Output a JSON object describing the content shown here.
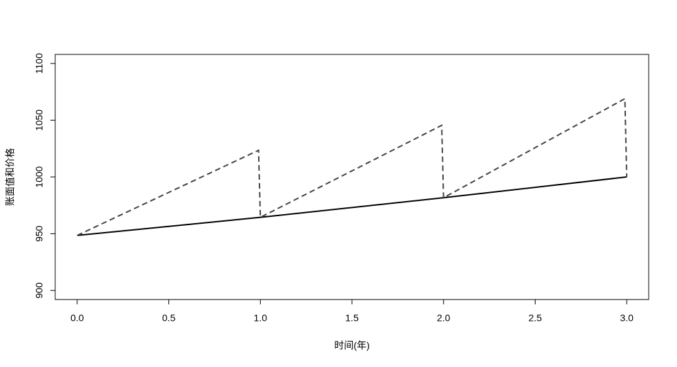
{
  "chart_data": {
    "type": "line",
    "xlabel": "时间(年)",
    "ylabel": "账面值和价格",
    "xlim": [
      -0.12,
      3.12
    ],
    "ylim": [
      892,
      1108
    ],
    "xticks": [
      {
        "value": 0,
        "label": "0.0"
      },
      0.5,
      {
        "value": 1,
        "label": "1.0"
      },
      1.5,
      {
        "value": 2,
        "label": "2.0"
      },
      2.5,
      {
        "value": 3,
        "label": "3.0"
      }
    ],
    "yticks": [
      900,
      950,
      1000,
      1050,
      1100
    ],
    "series": [
      {
        "color": "#000000",
        "linestyle": "solid",
        "x": [
          0,
          1,
          2,
          3
        ],
        "values": [
          948.5,
          964.4,
          981.7,
          1000
        ]
      },
      {
        "color": "#444444",
        "linestyle": "dashed",
        "x": [
          0,
          0.99,
          1,
          1.99,
          2,
          2.99,
          3
        ],
        "values": [
          948.5,
          1023.5,
          964.4,
          1045.5,
          981.7,
          1069,
          1000
        ]
      }
    ]
  }
}
